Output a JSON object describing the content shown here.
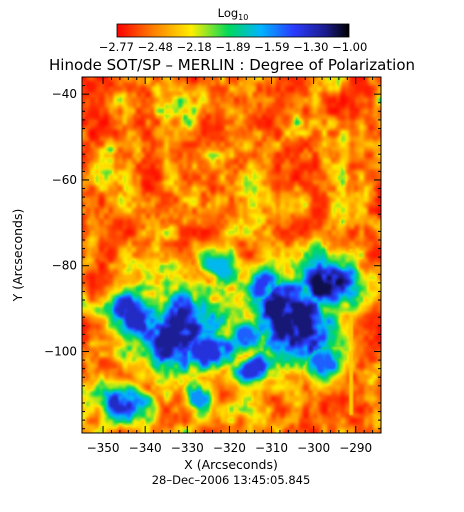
{
  "chart_data": {
    "type": "heatmap",
    "title": "Hinode SOT/SP – MERLIN : Degree of Polarization",
    "xlabel": "X (Arcseconds)",
    "ylabel": "Y (Arcseconds)",
    "xlim": [
      -355,
      -284
    ],
    "ylim": [
      -119,
      -36
    ],
    "xticks": [
      -350,
      -340,
      -330,
      -320,
      -310,
      -300,
      -290
    ],
    "xtick_labels": [
      "−350",
      "−340",
      "−330",
      "−320",
      "−310",
      "−300",
      "−290"
    ],
    "yticks": [
      -100,
      -80,
      -60,
      -40
    ],
    "ytick_labels": [
      "−100",
      "−80",
      "−60",
      "−40"
    ],
    "timestamp": "28–Dec–2006 13:45:05.845",
    "colorbar": {
      "label_main": "Log",
      "label_sub": "10",
      "min": -2.77,
      "max": -1.0,
      "ticks": [
        -2.77,
        -2.48,
        -2.18,
        -1.89,
        -1.59,
        -1.3,
        -1.0
      ],
      "tick_labels_text": "−2.77 −2.48 −2.18 −1.89 −1.59 −1.30 −1.00"
    },
    "colormap": [
      "#ff0000",
      "#ff7a00",
      "#ffee00",
      "#00d95a",
      "#00b4ff",
      "#2a3cff",
      "#1b1b8a",
      "#000000"
    ],
    "regions": [
      {
        "x": -333,
        "y": -95,
        "r": 11,
        "v": -1.2
      },
      {
        "x": -342,
        "y": -92,
        "r": 6,
        "v": -1.3
      },
      {
        "x": -325,
        "y": -100,
        "r": 6,
        "v": -1.35
      },
      {
        "x": -318,
        "y": -96,
        "r": 5,
        "v": -1.5
      },
      {
        "x": -305,
        "y": -93,
        "r": 10,
        "v": -1.15
      },
      {
        "x": -297,
        "y": -84,
        "r": 7,
        "v": -1.1
      },
      {
        "x": -310,
        "y": -86,
        "r": 5,
        "v": -1.4
      },
      {
        "x": -314,
        "y": -104,
        "r": 5,
        "v": -1.35
      },
      {
        "x": -300,
        "y": -101,
        "r": 5,
        "v": -1.5
      },
      {
        "x": -345,
        "y": -113,
        "r": 5,
        "v": -1.3
      },
      {
        "x": -322,
        "y": -80,
        "r": 4,
        "v": -1.7
      },
      {
        "x": -327,
        "y": -111,
        "r": 4,
        "v": -1.6
      }
    ]
  }
}
